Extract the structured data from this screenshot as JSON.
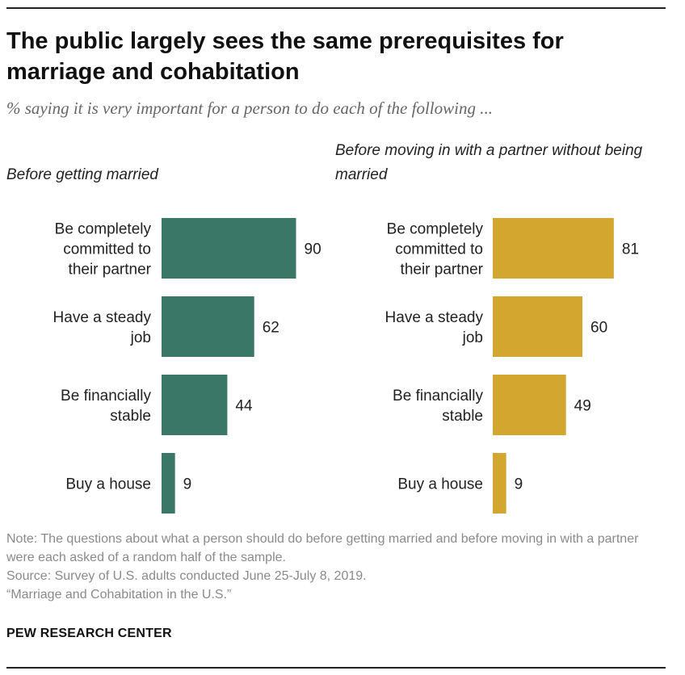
{
  "title": "The public largely sees the same prerequisites for marriage and cohabitation",
  "subtitle": "% saying it is very important for a person to do each of the following ...",
  "chart_data": [
    {
      "type": "bar",
      "orientation": "horizontal",
      "title": "Before getting married",
      "categories": [
        [
          "Be completely",
          "committed to",
          "their partner"
        ],
        [
          "Have a steady",
          "job"
        ],
        [
          "Be financially",
          "stable"
        ],
        [
          "Buy a house"
        ]
      ],
      "values": [
        90,
        62,
        44,
        9
      ],
      "xlim": [
        0,
        100
      ],
      "color": "#3a7766"
    },
    {
      "type": "bar",
      "orientation": "horizontal",
      "title": "Before moving in with a partner without being married",
      "categories": [
        [
          "Be completely",
          "committed to",
          "their partner"
        ],
        [
          "Have a steady",
          "job"
        ],
        [
          "Be financially",
          "stable"
        ],
        [
          "Buy a house"
        ]
      ],
      "values": [
        81,
        60,
        49,
        9
      ],
      "xlim": [
        0,
        100
      ],
      "color": "#d3a62f"
    }
  ],
  "notes": {
    "note": "Note: The questions about what a person should do before getting married and before moving in with a partner were each asked of a random half of the sample.",
    "source": "Source: Survey of U.S. adults conducted June 25-July 8, 2019.",
    "report": "“Marriage and Cohabitation in the U.S.”"
  },
  "brand": "PEW RESEARCH CENTER"
}
